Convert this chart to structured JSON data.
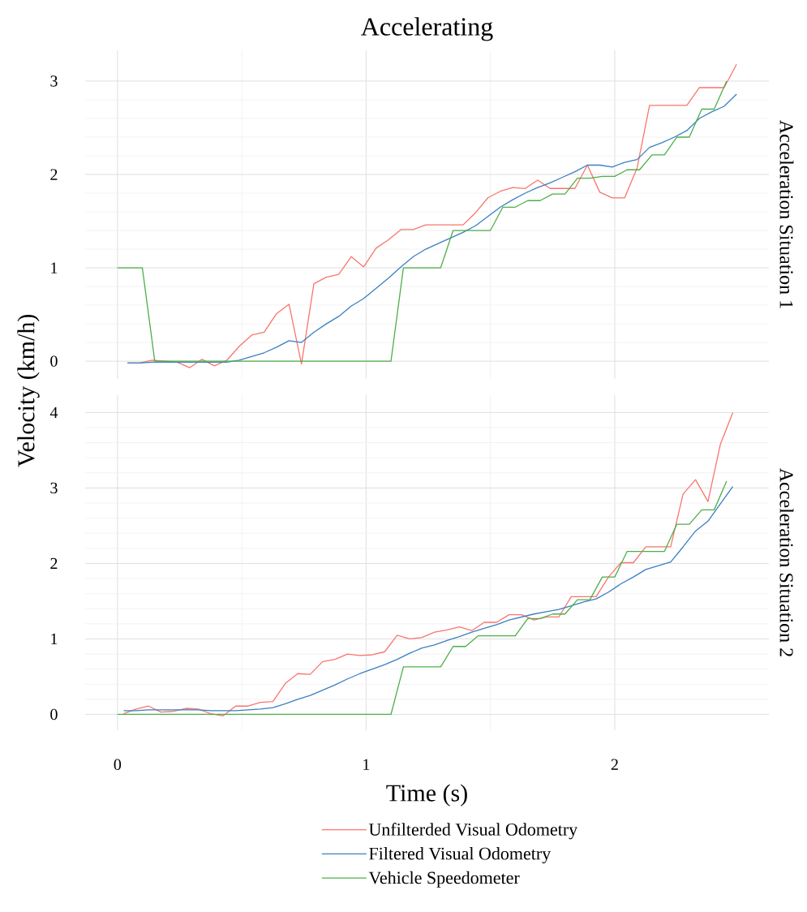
{
  "chart_data": [
    {
      "type": "line",
      "title": "Accelerating",
      "annotations": [
        "Acceleration Situation 1"
      ],
      "xlim": [
        -0.13,
        2.62
      ],
      "ylim": [
        -0.19,
        3.33
      ],
      "xticks": [
        0,
        1,
        2
      ],
      "yticks": [
        0,
        1,
        2,
        3
      ],
      "tick_labels": "y",
      "grid": true,
      "line_style": "solid",
      "series": [
        {
          "color": "#f8766d",
          "x": [
            0.04,
            0.09,
            0.14,
            0.19,
            0.24,
            0.29,
            0.34,
            0.39,
            0.44,
            0.49,
            0.54,
            0.59,
            0.64,
            0.69,
            0.74,
            0.79,
            0.84,
            0.89,
            0.94,
            0.99,
            1.04,
            1.09,
            1.14,
            1.19,
            1.24,
            1.29,
            1.34,
            1.39,
            1.44,
            1.49,
            1.54,
            1.59,
            1.64,
            1.69,
            1.74,
            1.79,
            1.84,
            1.89,
            1.94,
            1.99,
            2.04,
            2.09,
            2.14,
            2.19,
            2.24,
            2.29,
            2.34,
            2.39,
            2.44,
            2.49
          ],
          "values": [
            -0.02,
            -0.02,
            0.01,
            0.0,
            -0.01,
            -0.07,
            0.02,
            -0.05,
            0.01,
            0.16,
            0.28,
            0.31,
            0.51,
            0.61,
            -0.03,
            0.83,
            0.9,
            0.93,
            1.12,
            1.01,
            1.21,
            1.3,
            1.41,
            1.41,
            1.46,
            1.46,
            1.46,
            1.46,
            1.59,
            1.75,
            1.82,
            1.86,
            1.85,
            1.94,
            1.85,
            1.85,
            1.85,
            2.1,
            1.81,
            1.75,
            1.75,
            2.07,
            2.74,
            2.74,
            2.74,
            2.74,
            2.93,
            2.93,
            2.93,
            3.18
          ]
        },
        {
          "color": "#3a7fc1",
          "x": [
            0.04,
            0.09,
            0.14,
            0.19,
            0.24,
            0.29,
            0.34,
            0.39,
            0.44,
            0.49,
            0.54,
            0.59,
            0.64,
            0.69,
            0.74,
            0.79,
            0.84,
            0.89,
            0.94,
            0.99,
            1.04,
            1.09,
            1.14,
            1.19,
            1.24,
            1.29,
            1.34,
            1.39,
            1.44,
            1.49,
            1.54,
            1.59,
            1.64,
            1.69,
            1.74,
            1.79,
            1.84,
            1.89,
            1.94,
            1.99,
            2.04,
            2.09,
            2.14,
            2.19,
            2.24,
            2.29,
            2.34,
            2.39,
            2.44,
            2.49
          ],
          "values": [
            -0.02,
            -0.02,
            -0.01,
            -0.01,
            -0.01,
            -0.01,
            -0.01,
            -0.01,
            -0.01,
            0.01,
            0.05,
            0.09,
            0.15,
            0.22,
            0.2,
            0.31,
            0.4,
            0.48,
            0.59,
            0.67,
            0.78,
            0.89,
            1.01,
            1.12,
            1.2,
            1.26,
            1.32,
            1.38,
            1.45,
            1.55,
            1.65,
            1.73,
            1.8,
            1.86,
            1.91,
            1.97,
            2.03,
            2.1,
            2.1,
            2.08,
            2.13,
            2.16,
            2.29,
            2.34,
            2.4,
            2.47,
            2.6,
            2.67,
            2.73,
            2.86
          ]
        },
        {
          "color": "#4daf4a",
          "x": [
            0,
            0.1,
            0.15,
            1.1,
            1.15,
            1.3,
            1.35,
            1.5,
            1.55,
            1.6,
            1.65,
            1.7,
            1.75,
            1.8,
            1.85,
            1.9,
            1.95,
            2.0,
            2.05,
            2.1,
            2.15,
            2.2,
            2.25,
            2.3,
            2.35,
            2.4,
            2.45
          ],
          "values": [
            1,
            1,
            0,
            0,
            1,
            1,
            1.4,
            1.4,
            1.65,
            1.65,
            1.72,
            1.72,
            1.79,
            1.79,
            1.96,
            1.96,
            1.98,
            1.98,
            2.05,
            2.05,
            2.21,
            2.21,
            2.4,
            2.4,
            2.7,
            2.7,
            3.0
          ]
        }
      ]
    },
    {
      "type": "line",
      "annotations": [
        "Acceleration Situation 2"
      ],
      "xlabel": "Time (s)",
      "ylabel": "Velocity (km/h)",
      "xlim": [
        -0.13,
        2.62
      ],
      "ylim": [
        -0.21,
        4.23
      ],
      "xticks": [
        0,
        1,
        2
      ],
      "yticks": [
        0,
        1,
        2,
        3,
        4
      ],
      "grid": true,
      "legend": "bottom",
      "line_style": "solid",
      "series": [
        {
          "name": "Unfilterded Visual Odometry",
          "color": "#f8766d",
          "x": [
            0.025,
            0.075,
            0.125,
            0.175,
            0.225,
            0.275,
            0.325,
            0.375,
            0.425,
            0.475,
            0.525,
            0.575,
            0.625,
            0.675,
            0.725,
            0.775,
            0.825,
            0.875,
            0.925,
            0.975,
            1.025,
            1.075,
            1.125,
            1.175,
            1.225,
            1.275,
            1.325,
            1.375,
            1.425,
            1.475,
            1.525,
            1.575,
            1.625,
            1.675,
            1.725,
            1.775,
            1.825,
            1.875,
            1.925,
            1.975,
            2.025,
            2.075,
            2.125,
            2.175,
            2.225,
            2.275,
            2.325,
            2.375,
            2.425,
            2.475
          ],
          "values": [
            0.01,
            0.07,
            0.11,
            0.03,
            0.04,
            0.08,
            0.07,
            0.01,
            -0.02,
            0.11,
            0.11,
            0.16,
            0.17,
            0.41,
            0.54,
            0.53,
            0.7,
            0.73,
            0.8,
            0.78,
            0.79,
            0.83,
            1.05,
            1.0,
            1.02,
            1.09,
            1.12,
            1.16,
            1.11,
            1.22,
            1.22,
            1.32,
            1.32,
            1.25,
            1.29,
            1.29,
            1.56,
            1.56,
            1.56,
            1.82,
            2.01,
            2.01,
            2.22,
            2.22,
            2.22,
            2.92,
            3.11,
            2.82,
            3.58,
            4.0
          ]
        },
        {
          "name": "Filtered Visual Odometry",
          "color": "#3a7fc1",
          "x": [
            0.025,
            0.075,
            0.125,
            0.175,
            0.225,
            0.275,
            0.325,
            0.375,
            0.425,
            0.475,
            0.525,
            0.575,
            0.625,
            0.675,
            0.725,
            0.775,
            0.825,
            0.875,
            0.925,
            0.975,
            1.025,
            1.075,
            1.125,
            1.175,
            1.225,
            1.275,
            1.325,
            1.375,
            1.425,
            1.475,
            1.525,
            1.575,
            1.625,
            1.675,
            1.725,
            1.775,
            1.825,
            1.875,
            1.925,
            1.975,
            2.025,
            2.075,
            2.125,
            2.175,
            2.225,
            2.275,
            2.325,
            2.375,
            2.425,
            2.475
          ],
          "values": [
            0.05,
            0.05,
            0.06,
            0.06,
            0.06,
            0.06,
            0.06,
            0.05,
            0.05,
            0.05,
            0.06,
            0.07,
            0.09,
            0.14,
            0.2,
            0.25,
            0.32,
            0.39,
            0.47,
            0.54,
            0.6,
            0.66,
            0.73,
            0.81,
            0.88,
            0.92,
            0.98,
            1.03,
            1.09,
            1.14,
            1.19,
            1.25,
            1.29,
            1.33,
            1.36,
            1.39,
            1.44,
            1.49,
            1.53,
            1.62,
            1.73,
            1.82,
            1.92,
            1.97,
            2.02,
            2.22,
            2.43,
            2.56,
            2.79,
            3.02
          ]
        },
        {
          "name": "Vehicle Speedometer",
          "color": "#4daf4a",
          "x": [
            0,
            1.1,
            1.15,
            1.3,
            1.35,
            1.4,
            1.45,
            1.6,
            1.65,
            1.7,
            1.75,
            1.8,
            1.85,
            1.9,
            1.95,
            2.0,
            2.05,
            2.2,
            2.25,
            2.3,
            2.35,
            2.4,
            2.45
          ],
          "values": [
            0,
            0,
            0.63,
            0.63,
            0.9,
            0.9,
            1.04,
            1.04,
            1.27,
            1.27,
            1.33,
            1.33,
            1.52,
            1.52,
            1.82,
            1.82,
            2.16,
            2.16,
            2.52,
            2.52,
            2.71,
            2.71,
            3.09
          ]
        }
      ]
    }
  ]
}
